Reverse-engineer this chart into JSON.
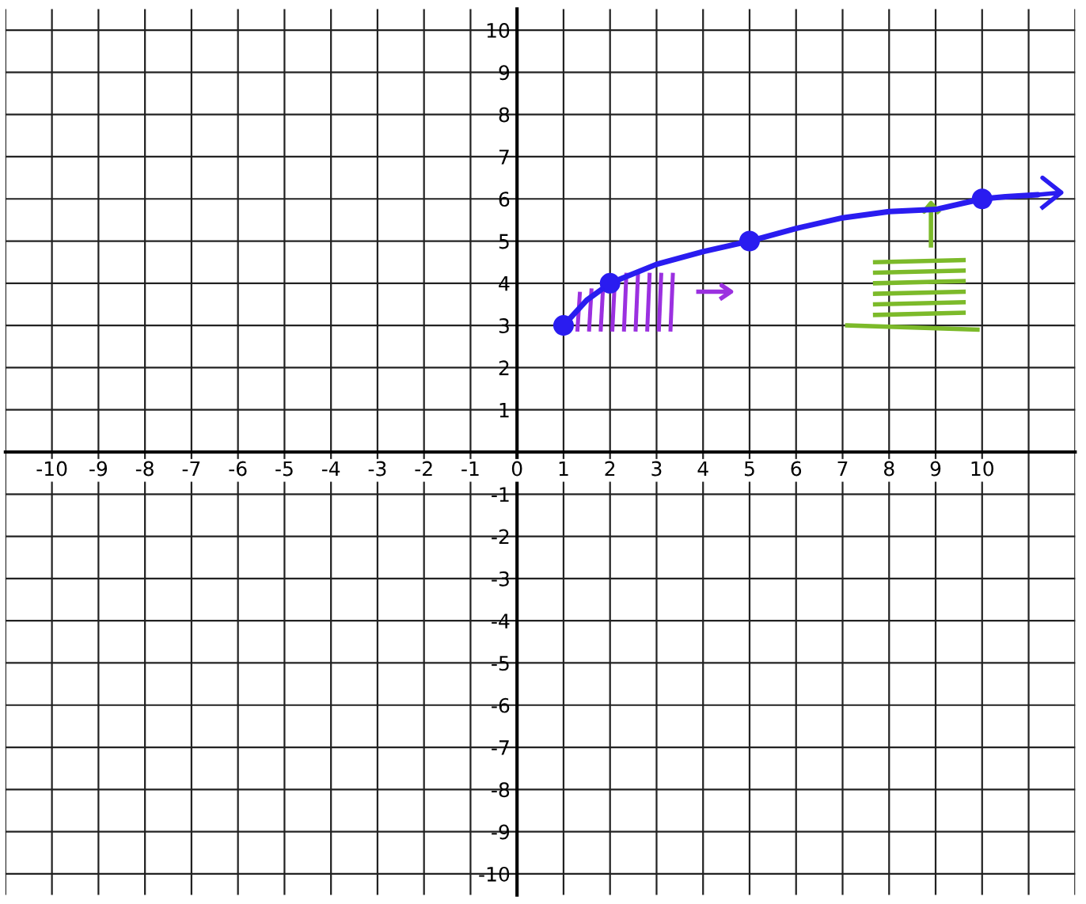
{
  "chart_data": {
    "type": "line",
    "series": [
      {
        "color": "#2a1cf0",
        "marker": "none",
        "x": [
          1,
          1.5,
          2,
          3,
          4,
          5,
          6,
          7,
          8,
          9,
          10,
          10.5,
          11.2
        ],
        "values": [
          3,
          3.6,
          4,
          4.45,
          4.75,
          5,
          5.3,
          5.55,
          5.7,
          5.75,
          6,
          6.05,
          6.1
        ]
      },
      {
        "type": "scatter",
        "color": "#2a1cf0",
        "marker": "circle",
        "x": [
          1,
          2,
          5,
          10
        ],
        "values": [
          3,
          4,
          5,
          6
        ]
      }
    ],
    "xlim": [
      -11,
      12
    ],
    "ylim": [
      -10.5,
      10.5
    ],
    "xticks": [
      {
        "value": -11,
        "label": null
      },
      -10,
      -9,
      -8,
      -7,
      -6,
      -5,
      -4,
      -3,
      -2,
      -1,
      0,
      1,
      2,
      3,
      4,
      5,
      6,
      7,
      8,
      9,
      10,
      {
        "value": 11,
        "label": null
      },
      {
        "value": 12,
        "label": null
      }
    ],
    "yticks": [
      -10,
      -9,
      -8,
      -7,
      -6,
      -5,
      -4,
      -3,
      -2,
      -1,
      {
        "value": 0,
        "label": null
      },
      1,
      2,
      3,
      4,
      5,
      6,
      7,
      8,
      9,
      10
    ],
    "grid": true
  }
}
